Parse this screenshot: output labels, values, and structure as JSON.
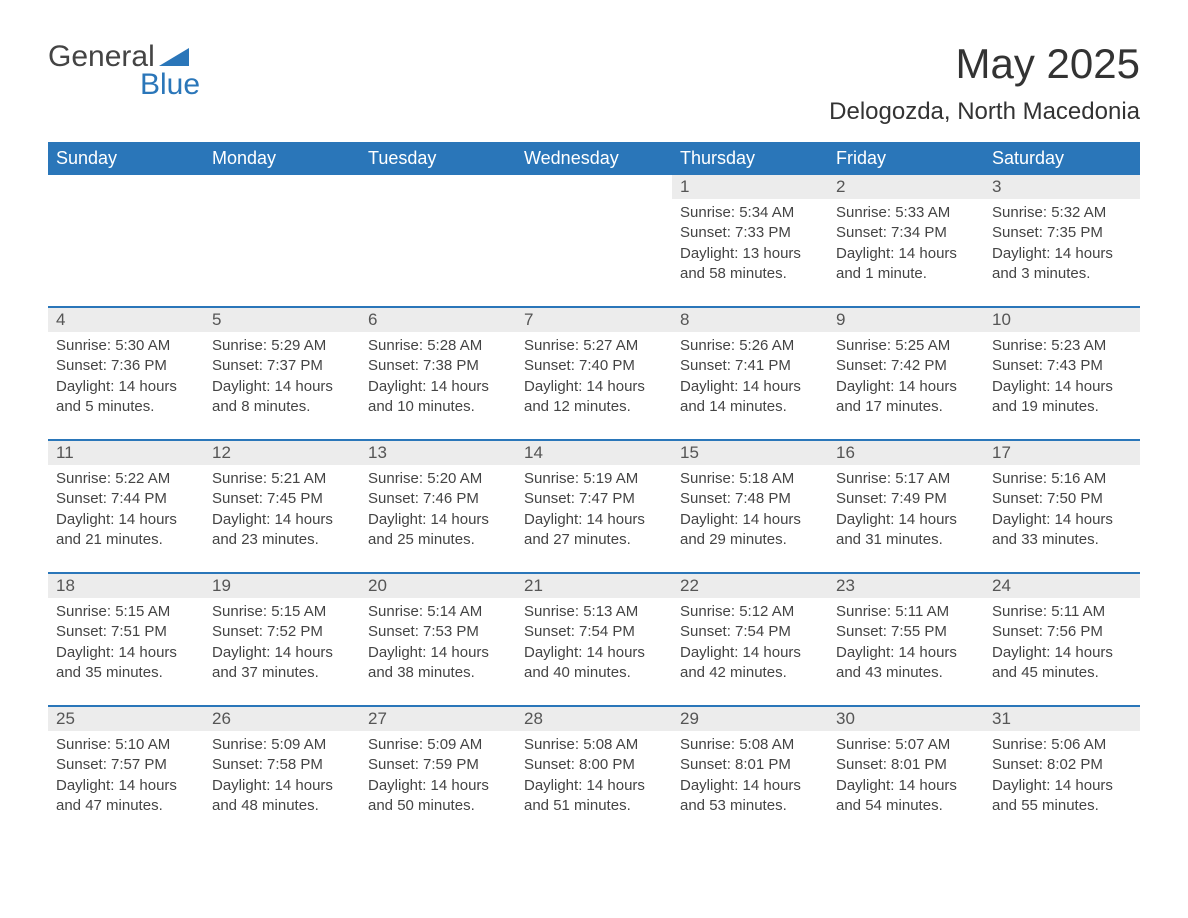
{
  "logo": {
    "line1": "General",
    "line2": "Blue",
    "shape_color": "#2a76b9"
  },
  "title": "May 2025",
  "location": "Delogozda, North Macedonia",
  "colors": {
    "header_bg": "#2a76b9",
    "header_text": "#ffffff",
    "daynum_bg": "#ececec",
    "body_text": "#444444",
    "separator": "#2a76b9",
    "background": "#ffffff"
  },
  "typography": {
    "title_fontsize": 42,
    "location_fontsize": 24,
    "dayheader_fontsize": 18,
    "cell_fontsize": 15
  },
  "day_labels": [
    "Sunday",
    "Monday",
    "Tuesday",
    "Wednesday",
    "Thursday",
    "Friday",
    "Saturday"
  ],
  "weeks": [
    [
      null,
      null,
      null,
      null,
      {
        "n": "1",
        "sunrise": "5:34 AM",
        "sunset": "7:33 PM",
        "daylight": "13 hours and 58 minutes."
      },
      {
        "n": "2",
        "sunrise": "5:33 AM",
        "sunset": "7:34 PM",
        "daylight": "14 hours and 1 minute."
      },
      {
        "n": "3",
        "sunrise": "5:32 AM",
        "sunset": "7:35 PM",
        "daylight": "14 hours and 3 minutes."
      }
    ],
    [
      {
        "n": "4",
        "sunrise": "5:30 AM",
        "sunset": "7:36 PM",
        "daylight": "14 hours and 5 minutes."
      },
      {
        "n": "5",
        "sunrise": "5:29 AM",
        "sunset": "7:37 PM",
        "daylight": "14 hours and 8 minutes."
      },
      {
        "n": "6",
        "sunrise": "5:28 AM",
        "sunset": "7:38 PM",
        "daylight": "14 hours and 10 minutes."
      },
      {
        "n": "7",
        "sunrise": "5:27 AM",
        "sunset": "7:40 PM",
        "daylight": "14 hours and 12 minutes."
      },
      {
        "n": "8",
        "sunrise": "5:26 AM",
        "sunset": "7:41 PM",
        "daylight": "14 hours and 14 minutes."
      },
      {
        "n": "9",
        "sunrise": "5:25 AM",
        "sunset": "7:42 PM",
        "daylight": "14 hours and 17 minutes."
      },
      {
        "n": "10",
        "sunrise": "5:23 AM",
        "sunset": "7:43 PM",
        "daylight": "14 hours and 19 minutes."
      }
    ],
    [
      {
        "n": "11",
        "sunrise": "5:22 AM",
        "sunset": "7:44 PM",
        "daylight": "14 hours and 21 minutes."
      },
      {
        "n": "12",
        "sunrise": "5:21 AM",
        "sunset": "7:45 PM",
        "daylight": "14 hours and 23 minutes."
      },
      {
        "n": "13",
        "sunrise": "5:20 AM",
        "sunset": "7:46 PM",
        "daylight": "14 hours and 25 minutes."
      },
      {
        "n": "14",
        "sunrise": "5:19 AM",
        "sunset": "7:47 PM",
        "daylight": "14 hours and 27 minutes."
      },
      {
        "n": "15",
        "sunrise": "5:18 AM",
        "sunset": "7:48 PM",
        "daylight": "14 hours and 29 minutes."
      },
      {
        "n": "16",
        "sunrise": "5:17 AM",
        "sunset": "7:49 PM",
        "daylight": "14 hours and 31 minutes."
      },
      {
        "n": "17",
        "sunrise": "5:16 AM",
        "sunset": "7:50 PM",
        "daylight": "14 hours and 33 minutes."
      }
    ],
    [
      {
        "n": "18",
        "sunrise": "5:15 AM",
        "sunset": "7:51 PM",
        "daylight": "14 hours and 35 minutes."
      },
      {
        "n": "19",
        "sunrise": "5:15 AM",
        "sunset": "7:52 PM",
        "daylight": "14 hours and 37 minutes."
      },
      {
        "n": "20",
        "sunrise": "5:14 AM",
        "sunset": "7:53 PM",
        "daylight": "14 hours and 38 minutes."
      },
      {
        "n": "21",
        "sunrise": "5:13 AM",
        "sunset": "7:54 PM",
        "daylight": "14 hours and 40 minutes."
      },
      {
        "n": "22",
        "sunrise": "5:12 AM",
        "sunset": "7:54 PM",
        "daylight": "14 hours and 42 minutes."
      },
      {
        "n": "23",
        "sunrise": "5:11 AM",
        "sunset": "7:55 PM",
        "daylight": "14 hours and 43 minutes."
      },
      {
        "n": "24",
        "sunrise": "5:11 AM",
        "sunset": "7:56 PM",
        "daylight": "14 hours and 45 minutes."
      }
    ],
    [
      {
        "n": "25",
        "sunrise": "5:10 AM",
        "sunset": "7:57 PM",
        "daylight": "14 hours and 47 minutes."
      },
      {
        "n": "26",
        "sunrise": "5:09 AM",
        "sunset": "7:58 PM",
        "daylight": "14 hours and 48 minutes."
      },
      {
        "n": "27",
        "sunrise": "5:09 AM",
        "sunset": "7:59 PM",
        "daylight": "14 hours and 50 minutes."
      },
      {
        "n": "28",
        "sunrise": "5:08 AM",
        "sunset": "8:00 PM",
        "daylight": "14 hours and 51 minutes."
      },
      {
        "n": "29",
        "sunrise": "5:08 AM",
        "sunset": "8:01 PM",
        "daylight": "14 hours and 53 minutes."
      },
      {
        "n": "30",
        "sunrise": "5:07 AM",
        "sunset": "8:01 PM",
        "daylight": "14 hours and 54 minutes."
      },
      {
        "n": "31",
        "sunrise": "5:06 AM",
        "sunset": "8:02 PM",
        "daylight": "14 hours and 55 minutes."
      }
    ]
  ],
  "labels": {
    "sunrise": "Sunrise: ",
    "sunset": "Sunset: ",
    "daylight": "Daylight: "
  }
}
